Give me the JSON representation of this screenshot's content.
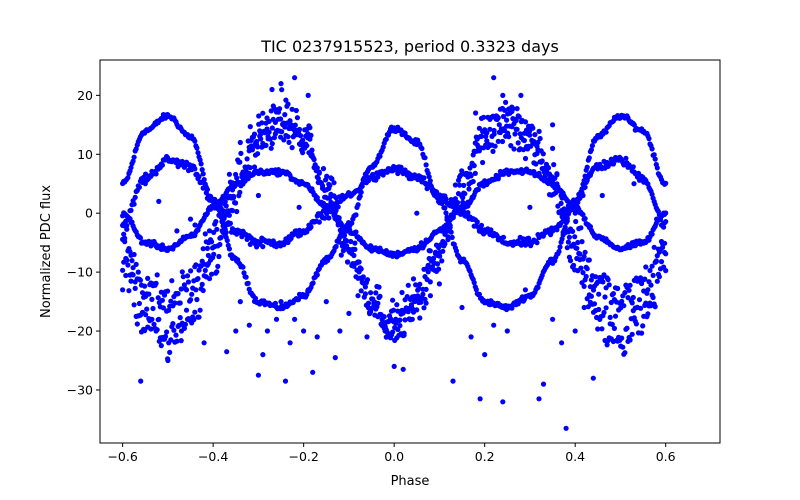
{
  "chart_data": {
    "type": "scatter",
    "title": "TIC 0237915523, period 0.3323 days",
    "xlabel": "Phase",
    "ylabel": "Normalized PDC flux",
    "xlim": [
      -0.65,
      0.72
    ],
    "ylim": [
      -39,
      26
    ],
    "xticks": [
      -0.6,
      -0.4,
      -0.2,
      0.0,
      0.2,
      0.4,
      0.6
    ],
    "xtick_labels": [
      "−0.6",
      "−0.4",
      "−0.2",
      "0.0",
      "0.2",
      "0.4",
      "0.6"
    ],
    "yticks": [
      -30,
      -20,
      -10,
      0,
      10,
      20
    ],
    "ytick_labels": [
      "−30",
      "−20",
      "−10",
      "0",
      "10",
      "20"
    ],
    "grid": false,
    "marker_color": "#0000ff",
    "series": [
      {
        "phase_range": [
          -0.6,
          0.6
        ],
        "curves": [
          {
            "x": [
              -0.6,
              -0.55,
              -0.5,
              -0.45,
              -0.4,
              -0.35,
              -0.3,
              -0.25,
              -0.2,
              -0.15,
              -0.1,
              -0.05,
              0.0,
              0.05,
              0.1,
              0.15,
              0.2,
              0.25,
              0.3,
              0.35,
              0.4,
              0.45,
              0.5,
              0.55,
              0.6
            ],
            "y": [
              5,
              14,
              16.5,
              13,
              2,
              -8,
              -15,
              -16,
              -14,
              -8,
              -2,
              8,
              14.5,
              12,
              2,
              -8,
              -15,
              -16,
              -14,
              -8,
              2,
              13,
              16.5,
              14,
              5
            ]
          },
          {
            "x": [
              -0.6,
              -0.55,
              -0.5,
              -0.45,
              -0.4,
              -0.35,
              -0.3,
              -0.25,
              -0.2,
              -0.15,
              -0.1,
              -0.05,
              0.0,
              0.05,
              0.1,
              0.15,
              0.2,
              0.25,
              0.3,
              0.35,
              0.4,
              0.45,
              0.5,
              0.55,
              0.6
            ],
            "y": [
              -2,
              6,
              9,
              8,
              2,
              -3,
              -5,
              -5,
              -3,
              0,
              3,
              6,
              7.5,
              6,
              3,
              0,
              -3,
              -5,
              -5,
              -3,
              2,
              8,
              9,
              6,
              -2
            ]
          },
          {
            "x": [
              -0.6,
              -0.55,
              -0.5,
              -0.45,
              -0.4,
              -0.35,
              -0.3,
              -0.25,
              -0.2,
              -0.15,
              -0.1,
              -0.05,
              0.0,
              0.05,
              0.1,
              0.15,
              0.2,
              0.25,
              0.3,
              0.35,
              0.4,
              0.45,
              0.5,
              0.55,
              0.6
            ],
            "y": [
              -5,
              -12,
              -15,
              -12,
              -4,
              6,
              12,
              14,
              12,
              4,
              -6,
              -14,
              -18,
              -14,
              -6,
              4,
              12,
              14,
              12,
              6,
              -4,
              -12,
              -15,
              -12,
              -5
            ]
          },
          {
            "x": [
              -0.6,
              -0.55,
              -0.5,
              -0.45,
              -0.4,
              -0.35,
              -0.3,
              -0.25,
              -0.2,
              -0.15,
              -0.1,
              -0.05,
              0.0,
              0.05,
              0.1,
              0.15,
              0.2,
              0.25,
              0.3,
              0.35,
              0.4,
              0.45,
              0.5,
              0.55,
              0.6
            ],
            "y": [
              0,
              -5,
              -6,
              -4,
              1,
              5,
              7,
              7,
              5,
              1,
              -3,
              -6,
              -7,
              -6,
              -3,
              1,
              5,
              7,
              7,
              5,
              1,
              -4,
              -6,
              -5,
              0
            ]
          },
          {
            "x": [
              -0.6,
              -0.55,
              -0.5,
              -0.45,
              -0.4,
              -0.35,
              -0.3,
              -0.25,
              -0.2,
              -0.15,
              -0.1,
              -0.05,
              0.0,
              0.05,
              0.1,
              0.15,
              0.2,
              0.25,
              0.3,
              0.35,
              0.4,
              0.45,
              0.5,
              0.55,
              0.6
            ],
            "y": [
              -8,
              -18,
              -22,
              -18,
              -8,
              4,
              14,
              17,
              14,
              5,
              -6,
              -16,
              -20,
              -16,
              -6,
              5,
              14,
              17,
              14,
              4,
              -8,
              -18,
              -22,
              -18,
              -8
            ]
          }
        ],
        "outliers": [
          [
            -0.6,
            -13
          ],
          [
            -0.56,
            -28.5
          ],
          [
            -0.52,
            -18
          ],
          [
            -0.5,
            -25
          ],
          [
            -0.47,
            -20
          ],
          [
            -0.44,
            -2
          ],
          [
            -0.42,
            -22
          ],
          [
            -0.38,
            -3
          ],
          [
            -0.37,
            -23.5
          ],
          [
            -0.35,
            -20
          ],
          [
            -0.34,
            -15
          ],
          [
            -0.32,
            -19
          ],
          [
            -0.3,
            -27.5
          ],
          [
            -0.29,
            -24
          ],
          [
            -0.28,
            -20
          ],
          [
            -0.26,
            -18
          ],
          [
            -0.25,
            -15
          ],
          [
            -0.24,
            -28.5
          ],
          [
            -0.23,
            -22
          ],
          [
            -0.22,
            -18
          ],
          [
            -0.2,
            -20
          ],
          [
            -0.19,
            -13
          ],
          [
            -0.18,
            -27
          ],
          [
            -0.17,
            -21
          ],
          [
            -0.15,
            -15
          ],
          [
            -0.13,
            -24.5
          ],
          [
            -0.12,
            -20
          ],
          [
            -0.1,
            -17
          ],
          [
            -0.08,
            -14
          ],
          [
            -0.06,
            -21
          ],
          [
            -0.04,
            -16
          ],
          [
            -0.02,
            -20
          ],
          [
            0.0,
            -26
          ],
          [
            0.02,
            -26.5
          ],
          [
            0.04,
            -18
          ],
          [
            0.06,
            -5
          ],
          [
            0.08,
            -14
          ],
          [
            0.1,
            -12
          ],
          [
            0.13,
            -28.5
          ],
          [
            0.15,
            -16
          ],
          [
            0.17,
            -21
          ],
          [
            0.19,
            -31.5
          ],
          [
            0.2,
            -24
          ],
          [
            0.22,
            -19
          ],
          [
            0.24,
            -32
          ],
          [
            0.25,
            -20
          ],
          [
            0.27,
            -15
          ],
          [
            0.29,
            -13
          ],
          [
            0.32,
            -31.5
          ],
          [
            0.33,
            -29
          ],
          [
            0.35,
            -18
          ],
          [
            0.37,
            -22
          ],
          [
            0.38,
            -36.5
          ],
          [
            0.4,
            -20
          ],
          [
            0.42,
            -16
          ],
          [
            0.44,
            -28
          ],
          [
            -0.55,
            5
          ],
          [
            -0.54,
            -5
          ],
          [
            -0.52,
            2
          ],
          [
            -0.48,
            -3
          ],
          [
            -0.45,
            -1
          ],
          [
            -0.41,
            -5
          ],
          [
            -0.3,
            3
          ],
          [
            -0.21,
            1
          ],
          [
            -0.14,
            6
          ],
          [
            0.05,
            0
          ],
          [
            0.12,
            -3
          ],
          [
            0.3,
            1
          ],
          [
            0.4,
            0
          ],
          [
            0.46,
            3
          ],
          [
            0.53,
            5
          ],
          [
            0.58,
            -1
          ],
          [
            -0.22,
            23
          ],
          [
            -0.25,
            22
          ],
          [
            -0.27,
            21
          ],
          [
            0.22,
            23
          ],
          [
            0.24,
            20
          ],
          [
            0.26,
            18
          ],
          [
            0.18,
            17
          ],
          [
            -0.19,
            20
          ],
          [
            0.35,
            15
          ],
          [
            0.35,
            11
          ],
          [
            -0.34,
            12
          ],
          [
            0.28,
            20
          ]
        ]
      }
    ]
  }
}
